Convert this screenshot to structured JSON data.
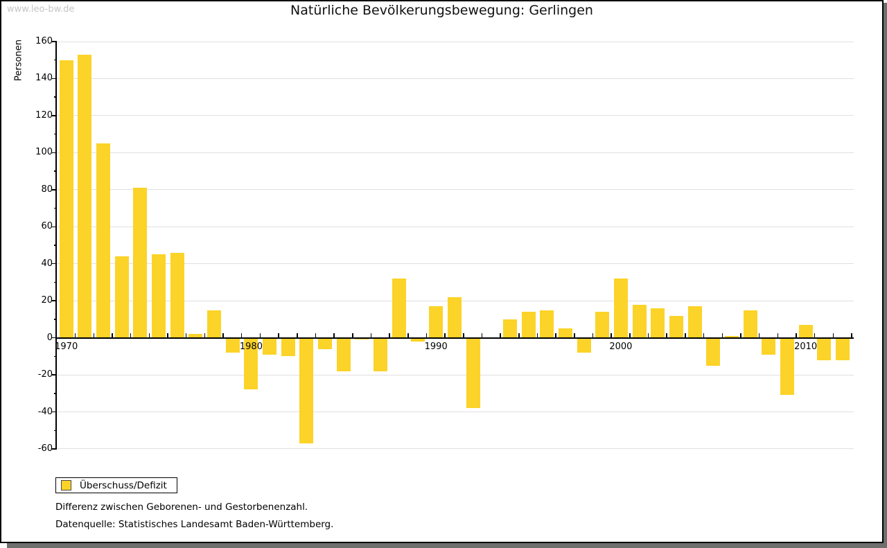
{
  "watermark": "www.leo-bw.de",
  "title": "Natürliche Bevölkerungsbewegung: Gerlingen",
  "legend": {
    "label": "Überschuss/Defizit"
  },
  "footnotes": {
    "line1": "Differenz zwischen Geborenen- und Gestorbenenzahl.",
    "line2": "Datenquelle: Statistisches Landesamt Baden-Württemberg."
  },
  "colors": {
    "bar": "#FCD328",
    "legend_swatch_border": "#4a4a4a",
    "grid": "#e0e0e0",
    "axis": "#000000",
    "watermark": "#c5c5c5"
  },
  "chart_data": {
    "type": "bar",
    "title": "Natürliche Bevölkerungsbewegung: Gerlingen",
    "ylabel": "Personen",
    "xlabel": "",
    "ylim": [
      -60,
      160
    ],
    "ytick_step": 20,
    "yminor_step": 10,
    "grid": "horizontal-major",
    "legend_position": "bottom-left",
    "series_name": "Überschuss/Defizit",
    "x": [
      1970,
      1971,
      1972,
      1973,
      1974,
      1975,
      1976,
      1977,
      1978,
      1979,
      1980,
      1981,
      1982,
      1983,
      1984,
      1985,
      1986,
      1987,
      1988,
      1989,
      1990,
      1991,
      1992,
      1993,
      1994,
      1995,
      1996,
      1997,
      1998,
      1999,
      2000,
      2001,
      2002,
      2003,
      2004,
      2005,
      2006,
      2007,
      2008,
      2009,
      2010,
      2011,
      2012
    ],
    "values": [
      150,
      153,
      105,
      44,
      81,
      45,
      46,
      2,
      15,
      -8,
      -28,
      -9,
      -10,
      -57,
      -6,
      -18,
      -1,
      -18,
      32,
      -2,
      17,
      22,
      -38,
      0,
      10,
      14,
      15,
      5,
      -8,
      14,
      32,
      18,
      16,
      12,
      17,
      -15,
      1,
      15,
      -9,
      -31,
      7,
      -12,
      -12
    ],
    "x_decade_labels": [
      "1970",
      "1980",
      "1990",
      "2000",
      "2010"
    ]
  }
}
